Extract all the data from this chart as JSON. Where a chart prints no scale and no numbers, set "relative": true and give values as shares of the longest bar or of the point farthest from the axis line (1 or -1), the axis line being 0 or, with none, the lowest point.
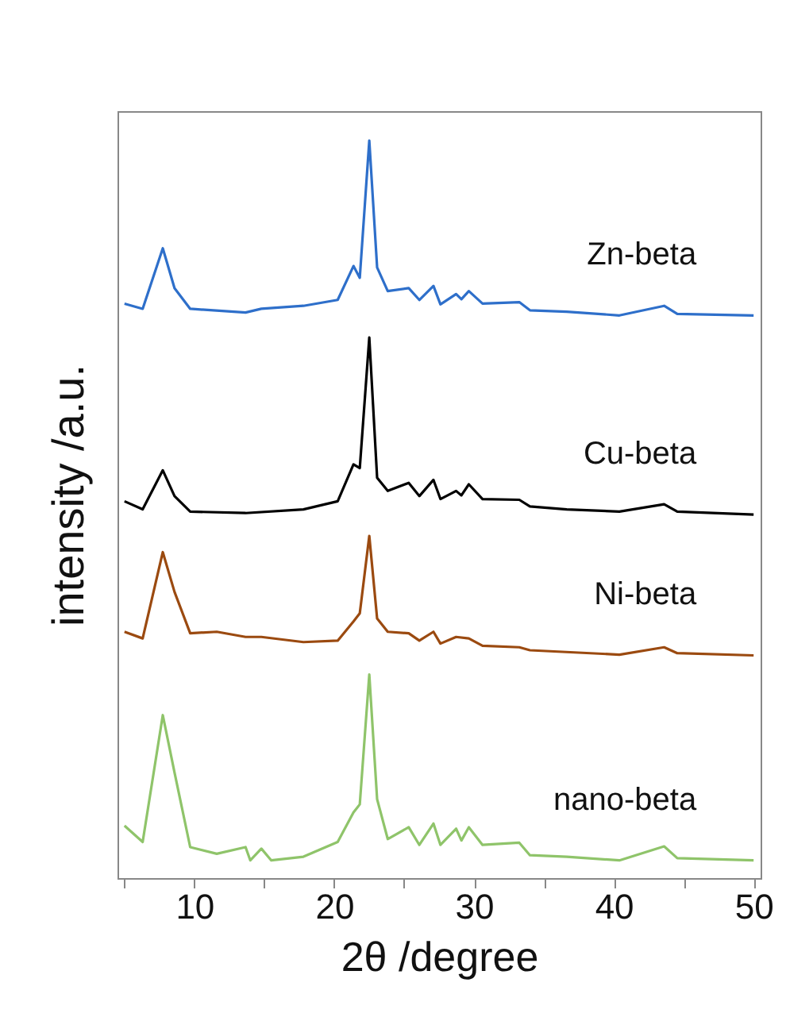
{
  "chart_data": {
    "type": "line",
    "relative": true,
    "xlabel": "2θ /degree",
    "ylabel": "intensity /a.u.",
    "xlim": [
      4.5,
      50.5
    ],
    "xticks": [
      {
        "value": 5,
        "label": null
      },
      10,
      {
        "value": 15,
        "label": null
      },
      20,
      {
        "value": 25,
        "label": null
      },
      30,
      {
        "value": 35,
        "label": null
      },
      40,
      {
        "value": 45,
        "label": null
      },
      50
    ],
    "tick_labels": "x",
    "grid": false,
    "legend": false,
    "series": [
      {
        "name": "Zn-beta",
        "color": "#2e6fca",
        "x": [
          5.0,
          6.3,
          7.74,
          8.58,
          9.7,
          13.66,
          14.79,
          17.8,
          20.25,
          21.38,
          21.83,
          22.51,
          23.07,
          23.83,
          25.33,
          26.09,
          27.1,
          27.6,
          28.72,
          29.1,
          29.63,
          30.61,
          33.24,
          34.0,
          36.63,
          40.4,
          43.6,
          44.54,
          50.0
        ],
        "values": [
          0.779,
          0.772,
          0.854,
          0.8,
          0.772,
          0.767,
          0.772,
          0.776,
          0.784,
          0.83,
          0.814,
          1.0,
          0.828,
          0.796,
          0.8,
          0.784,
          0.803,
          0.778,
          0.792,
          0.785,
          0.796,
          0.779,
          0.781,
          0.77,
          0.768,
          0.763,
          0.776,
          0.765,
          0.763
        ]
      },
      {
        "name": "Cu-beta",
        "color": "#000000",
        "x": [
          5.0,
          6.3,
          7.74,
          8.58,
          9.7,
          13.66,
          17.8,
          20.25,
          21.38,
          21.83,
          22.51,
          23.07,
          23.83,
          25.33,
          26.09,
          27.1,
          27.6,
          28.72,
          29.1,
          29.63,
          30.61,
          33.24,
          34.0,
          36.63,
          40.4,
          43.6,
          44.54,
          50.0
        ],
        "values": [
          0.511,
          0.5,
          0.553,
          0.518,
          0.497,
          0.495,
          0.5,
          0.511,
          0.561,
          0.556,
          0.733,
          0.543,
          0.525,
          0.536,
          0.518,
          0.54,
          0.514,
          0.525,
          0.519,
          0.534,
          0.514,
          0.513,
          0.504,
          0.5,
          0.497,
          0.507,
          0.497,
          0.493
        ]
      },
      {
        "name": "Ni-beta",
        "color": "#9b4a10",
        "x": [
          5.0,
          6.3,
          7.74,
          8.58,
          9.7,
          11.6,
          13.66,
          14.79,
          17.8,
          20.25,
          21.38,
          21.83,
          22.51,
          23.07,
          23.83,
          25.33,
          26.09,
          27.1,
          27.6,
          28.72,
          29.63,
          30.61,
          33.24,
          34.0,
          40.4,
          43.6,
          44.54,
          50.0
        ],
        "values": [
          0.334,
          0.325,
          0.442,
          0.388,
          0.332,
          0.334,
          0.327,
          0.327,
          0.32,
          0.322,
          0.348,
          0.359,
          0.464,
          0.352,
          0.334,
          0.332,
          0.322,
          0.334,
          0.318,
          0.327,
          0.325,
          0.315,
          0.313,
          0.309,
          0.303,
          0.313,
          0.305,
          0.302
        ]
      },
      {
        "name": "nano-beta",
        "color": "#8fc46a",
        "x": [
          5.0,
          6.3,
          7.74,
          8.58,
          9.7,
          11.6,
          13.66,
          14.0,
          14.79,
          15.5,
          17.8,
          20.25,
          21.38,
          21.83,
          22.51,
          23.07,
          23.83,
          25.33,
          26.09,
          27.1,
          27.6,
          28.72,
          29.1,
          29.63,
          30.61,
          33.24,
          34.0,
          36.63,
          40.4,
          43.6,
          44.54,
          50.0
        ],
        "values": [
          0.071,
          0.049,
          0.221,
          0.143,
          0.042,
          0.033,
          0.042,
          0.024,
          0.04,
          0.024,
          0.029,
          0.049,
          0.089,
          0.1,
          0.276,
          0.107,
          0.053,
          0.069,
          0.045,
          0.074,
          0.045,
          0.067,
          0.051,
          0.069,
          0.045,
          0.048,
          0.031,
          0.029,
          0.024,
          0.043,
          0.027,
          0.024
        ]
      }
    ]
  }
}
